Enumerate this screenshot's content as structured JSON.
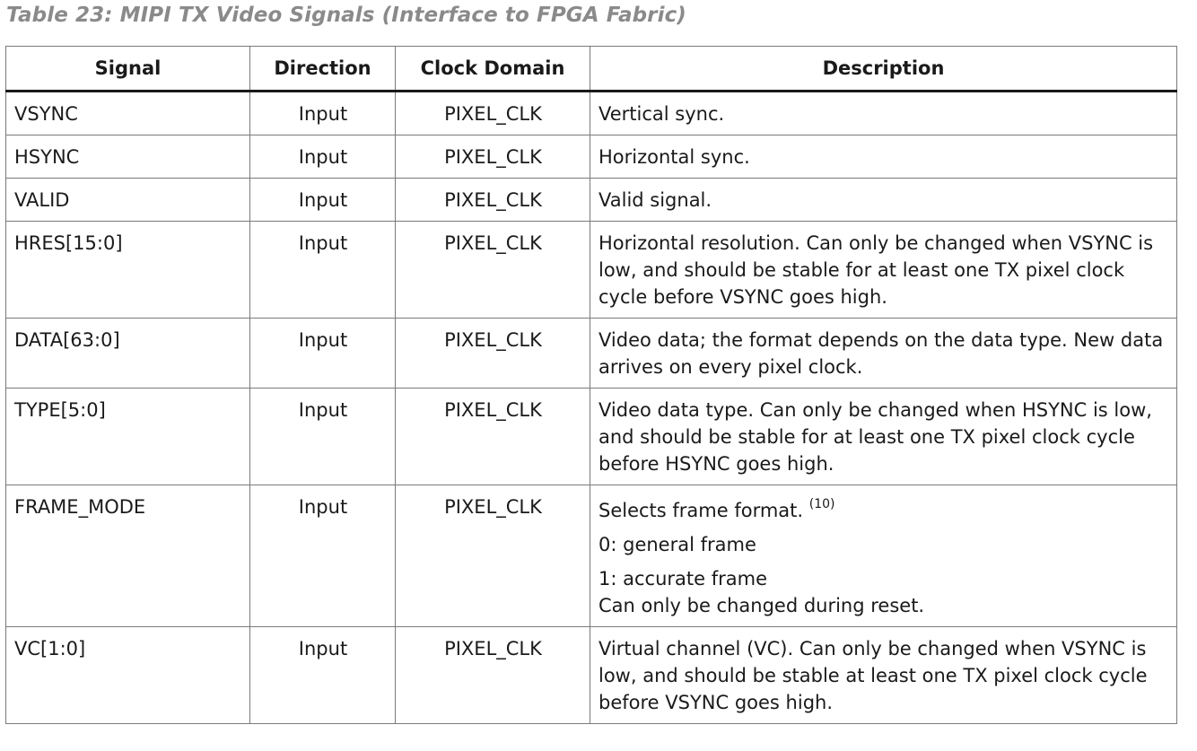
{
  "caption": "Table 23: MIPI TX Video Signals (Interface to FPGA Fabric)",
  "table": {
    "headers": {
      "signal": "Signal",
      "direction": "Direction",
      "clock_domain": "Clock Domain",
      "description": "Description"
    },
    "rows": [
      {
        "signal": "VSYNC",
        "direction": "Input",
        "clock_domain": "PIXEL_CLK",
        "description": "Vertical sync."
      },
      {
        "signal": "HSYNC",
        "direction": "Input",
        "clock_domain": "PIXEL_CLK",
        "description": "Horizontal sync."
      },
      {
        "signal": "VALID",
        "direction": "Input",
        "clock_domain": "PIXEL_CLK",
        "description": "Valid signal."
      },
      {
        "signal": "HRES[15:0]",
        "direction": "Input",
        "clock_domain": "PIXEL_CLK",
        "description": "Horizontal resolution. Can only be changed when VSYNC is low, and should be stable for at least one TX pixel clock cycle before VSYNC goes high."
      },
      {
        "signal": "DATA[63:0]",
        "direction": "Input",
        "clock_domain": "PIXEL_CLK",
        "description": "Video data; the format depends on the data type. New data arrives on every pixel clock."
      },
      {
        "signal": "TYPE[5:0]",
        "direction": "Input",
        "clock_domain": "PIXEL_CLK",
        "description": "Video data type. Can only be changed when HSYNC is low, and should be stable for at least one TX pixel clock cycle before HSYNC goes high."
      },
      {
        "signal": "FRAME_MODE",
        "direction": "Input",
        "clock_domain": "PIXEL_CLK",
        "description_lines": [
          "Selects frame format.",
          "0: general frame",
          "1: accurate frame",
          "Can only be changed during reset."
        ],
        "footnote": "(10)"
      },
      {
        "signal": "VC[1:0]",
        "direction": "Input",
        "clock_domain": "PIXEL_CLK",
        "description": "Virtual channel (VC). Can only be changed when VSYNC is low, and should be stable at least one TX pixel clock cycle before VSYNC goes high."
      }
    ]
  }
}
